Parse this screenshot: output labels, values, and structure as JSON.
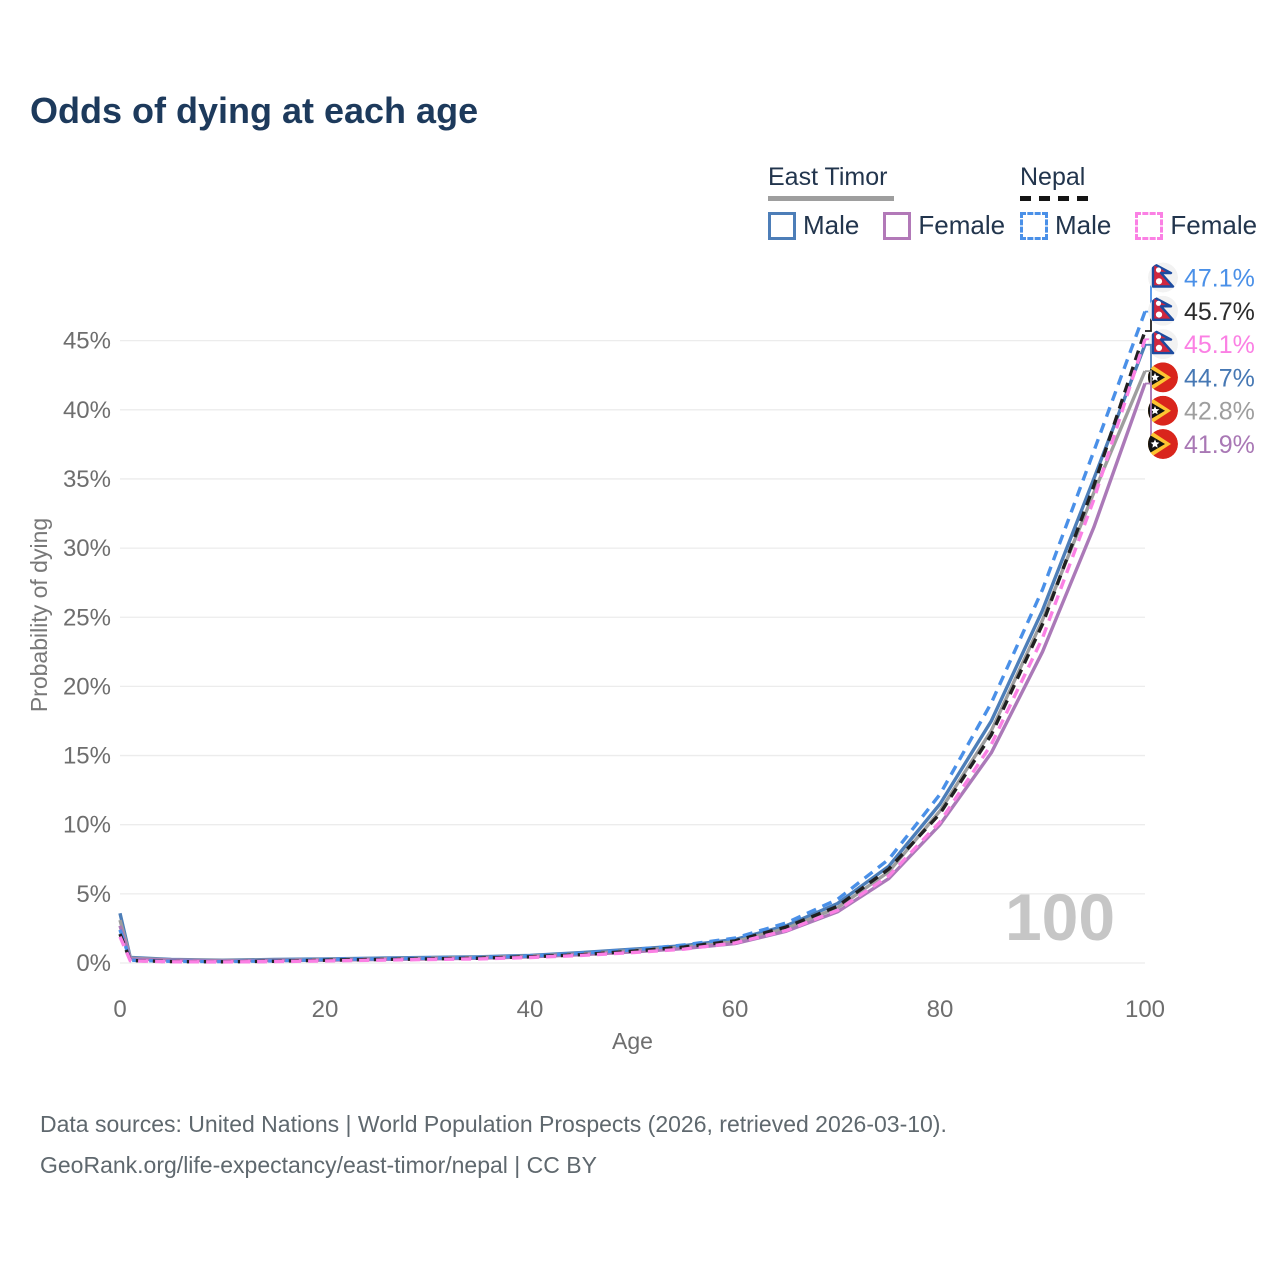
{
  "title": "Odds of dying at each age",
  "legend": {
    "groups": [
      {
        "name": "East Timor",
        "line_style": "solid",
        "underline_color": "#9e9e9e",
        "items": [
          {
            "label": "Male",
            "color": "#4d7eb8"
          },
          {
            "label": "Female",
            "color": "#b279b8"
          }
        ]
      },
      {
        "name": "Nepal",
        "line_style": "dashed",
        "underline_color": "#141414",
        "items": [
          {
            "label": "Male",
            "color": "#4a90e8"
          },
          {
            "label": "Female",
            "color": "#fb80e4"
          }
        ]
      }
    ]
  },
  "chart_data": {
    "type": "line",
    "title": "Odds of dying at each age",
    "xlabel": "Age",
    "ylabel": "Probability of dying",
    "xlim": [
      0,
      100
    ],
    "ylim": [
      0,
      47.5
    ],
    "grid": "horizontal",
    "watermark": "100",
    "x_ticks": [
      {
        "value": 0,
        "label": "0"
      },
      {
        "value": 20,
        "label": "20"
      },
      {
        "value": 40,
        "label": "40"
      },
      {
        "value": 60,
        "label": "60"
      },
      {
        "value": 80,
        "label": "80"
      },
      {
        "value": 100,
        "label": "100"
      }
    ],
    "y_ticks": [
      {
        "value": 0,
        "label": "0%"
      },
      {
        "value": 5,
        "label": "5%"
      },
      {
        "value": 10,
        "label": "10%"
      },
      {
        "value": 15,
        "label": "15%"
      },
      {
        "value": 20,
        "label": "20%"
      },
      {
        "value": 25,
        "label": "25%"
      },
      {
        "value": 30,
        "label": "30%"
      },
      {
        "value": 35,
        "label": "35%"
      },
      {
        "value": 40,
        "label": "40%"
      },
      {
        "value": 45,
        "label": "45%"
      }
    ],
    "x": [
      0,
      1,
      5,
      10,
      15,
      20,
      25,
      30,
      35,
      40,
      45,
      50,
      55,
      60,
      65,
      70,
      75,
      80,
      85,
      90,
      95,
      100
    ],
    "series": [
      {
        "name": "Nepal Male",
        "country": "Nepal",
        "sex": "Male",
        "flag": "nepal",
        "color": "#4a90e8",
        "dash": true,
        "end_label": "47.1%",
        "label_color": "#4a90e8",
        "values": [
          2.4,
          0.2,
          0.12,
          0.1,
          0.15,
          0.25,
          0.3,
          0.35,
          0.4,
          0.5,
          0.7,
          0.95,
          1.3,
          1.8,
          2.9,
          4.6,
          7.5,
          12.2,
          18.8,
          27.0,
          37.0,
          47.1
        ]
      },
      {
        "name": "Nepal Both sexes",
        "country": "Nepal",
        "sex": "Both",
        "flag": "nepal",
        "color": "#212121",
        "dash": true,
        "end_label": "45.7%",
        "label_color": "#2b2b2b",
        "values": [
          2.1,
          0.18,
          0.1,
          0.09,
          0.12,
          0.2,
          0.25,
          0.3,
          0.35,
          0.45,
          0.6,
          0.85,
          1.15,
          1.6,
          2.6,
          4.1,
          6.8,
          10.8,
          16.5,
          24.5,
          34.5,
          45.7
        ]
      },
      {
        "name": "Nepal Female",
        "country": "Nepal",
        "sex": "Female",
        "flag": "nepal",
        "color": "#fb80e4",
        "dash": true,
        "end_label": "45.1%",
        "label_color": "#fb80e4",
        "values": [
          1.9,
          0.16,
          0.09,
          0.08,
          0.1,
          0.15,
          0.2,
          0.25,
          0.3,
          0.4,
          0.55,
          0.75,
          1.0,
          1.45,
          2.35,
          3.8,
          6.3,
          10.2,
          15.8,
          23.5,
          33.5,
          45.1
        ]
      },
      {
        "name": "East Timor Male",
        "country": "East Timor",
        "sex": "Male",
        "flag": "east-timor",
        "color": "#4d7eb8",
        "dash": false,
        "end_label": "44.7%",
        "label_color": "#4678b4",
        "values": [
          3.6,
          0.4,
          0.25,
          0.2,
          0.25,
          0.3,
          0.35,
          0.4,
          0.45,
          0.55,
          0.75,
          1.0,
          1.25,
          1.7,
          2.7,
          4.3,
          7.0,
          11.5,
          17.5,
          25.5,
          35.0,
          44.7
        ]
      },
      {
        "name": "East Timor Both sexes",
        "country": "East Timor",
        "sex": "Both",
        "flag": "east-timor",
        "color": "#9e9e9e",
        "dash": false,
        "end_label": "42.8%",
        "label_color": "#9e9e9e",
        "values": [
          3.1,
          0.35,
          0.22,
          0.18,
          0.2,
          0.25,
          0.3,
          0.35,
          0.4,
          0.5,
          0.65,
          0.9,
          1.15,
          1.55,
          2.5,
          4.0,
          6.6,
          11.0,
          16.8,
          24.8,
          34.0,
          42.8
        ]
      },
      {
        "name": "East Timor Female",
        "country": "East Timor",
        "sex": "Female",
        "flag": "east-timor",
        "color": "#ab79b8",
        "dash": false,
        "end_label": "41.9%",
        "label_color": "#a978b5",
        "values": [
          2.7,
          0.3,
          0.2,
          0.15,
          0.18,
          0.2,
          0.25,
          0.3,
          0.35,
          0.45,
          0.6,
          0.8,
          1.05,
          1.4,
          2.3,
          3.7,
          6.1,
          10.0,
          15.2,
          22.5,
          31.5,
          41.9
        ]
      }
    ]
  },
  "footer": {
    "line1": "Data sources: United Nations | World Population Prospects (2026, retrieved 2026-03-10).",
    "line2": "GeoRank.org/life-expectancy/east-timor/nepal | CC BY"
  }
}
